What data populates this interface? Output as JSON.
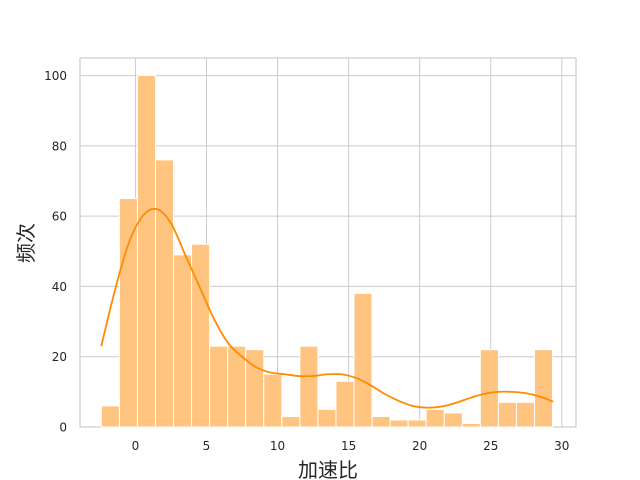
{
  "chart_data": {
    "type": "histogram",
    "xlabel": "加速比",
    "ylabel": "频次",
    "xlim": [
      -3.9,
      31.0
    ],
    "ylim": [
      0,
      105
    ],
    "xticks": [
      0,
      5,
      10,
      15,
      20,
      25,
      30
    ],
    "yticks": [
      0,
      20,
      40,
      60,
      80,
      100
    ],
    "grid": true,
    "bin_start": -2.4,
    "bin_width": 1.27,
    "counts": [
      6,
      65,
      100,
      76,
      49,
      52,
      23,
      23,
      22,
      15,
      3,
      23,
      5,
      13,
      38,
      3,
      2,
      2,
      5,
      4,
      1,
      22,
      7,
      7,
      22
    ],
    "bar_color": "#ffc47f",
    "bar_edge_color": "#ffffff",
    "kde_color": "#ff8c00",
    "kde_curve": {
      "x": [
        -2.4,
        -1.5,
        -0.5,
        0.5,
        1.5,
        2.5,
        3.5,
        4.5,
        5.5,
        6.5,
        7.5,
        8.5,
        9.5,
        10.5,
        11.5,
        12.5,
        13.5,
        14.5,
        15.5,
        16.5,
        17.5,
        18.5,
        19.5,
        20.5,
        21.5,
        22.5,
        23.5,
        24.5,
        25.5,
        26.5,
        27.5,
        28.5,
        29.4
      ],
      "y": [
        23,
        38,
        52,
        60,
        62,
        58,
        49,
        40,
        31,
        24,
        20,
        17,
        15.5,
        15,
        14.5,
        14.5,
        15,
        15,
        14,
        12,
        9.5,
        7.5,
        6,
        5.5,
        5.8,
        6.8,
        8.2,
        9.4,
        10,
        10,
        9.6,
        8.6,
        7.2
      ]
    }
  }
}
